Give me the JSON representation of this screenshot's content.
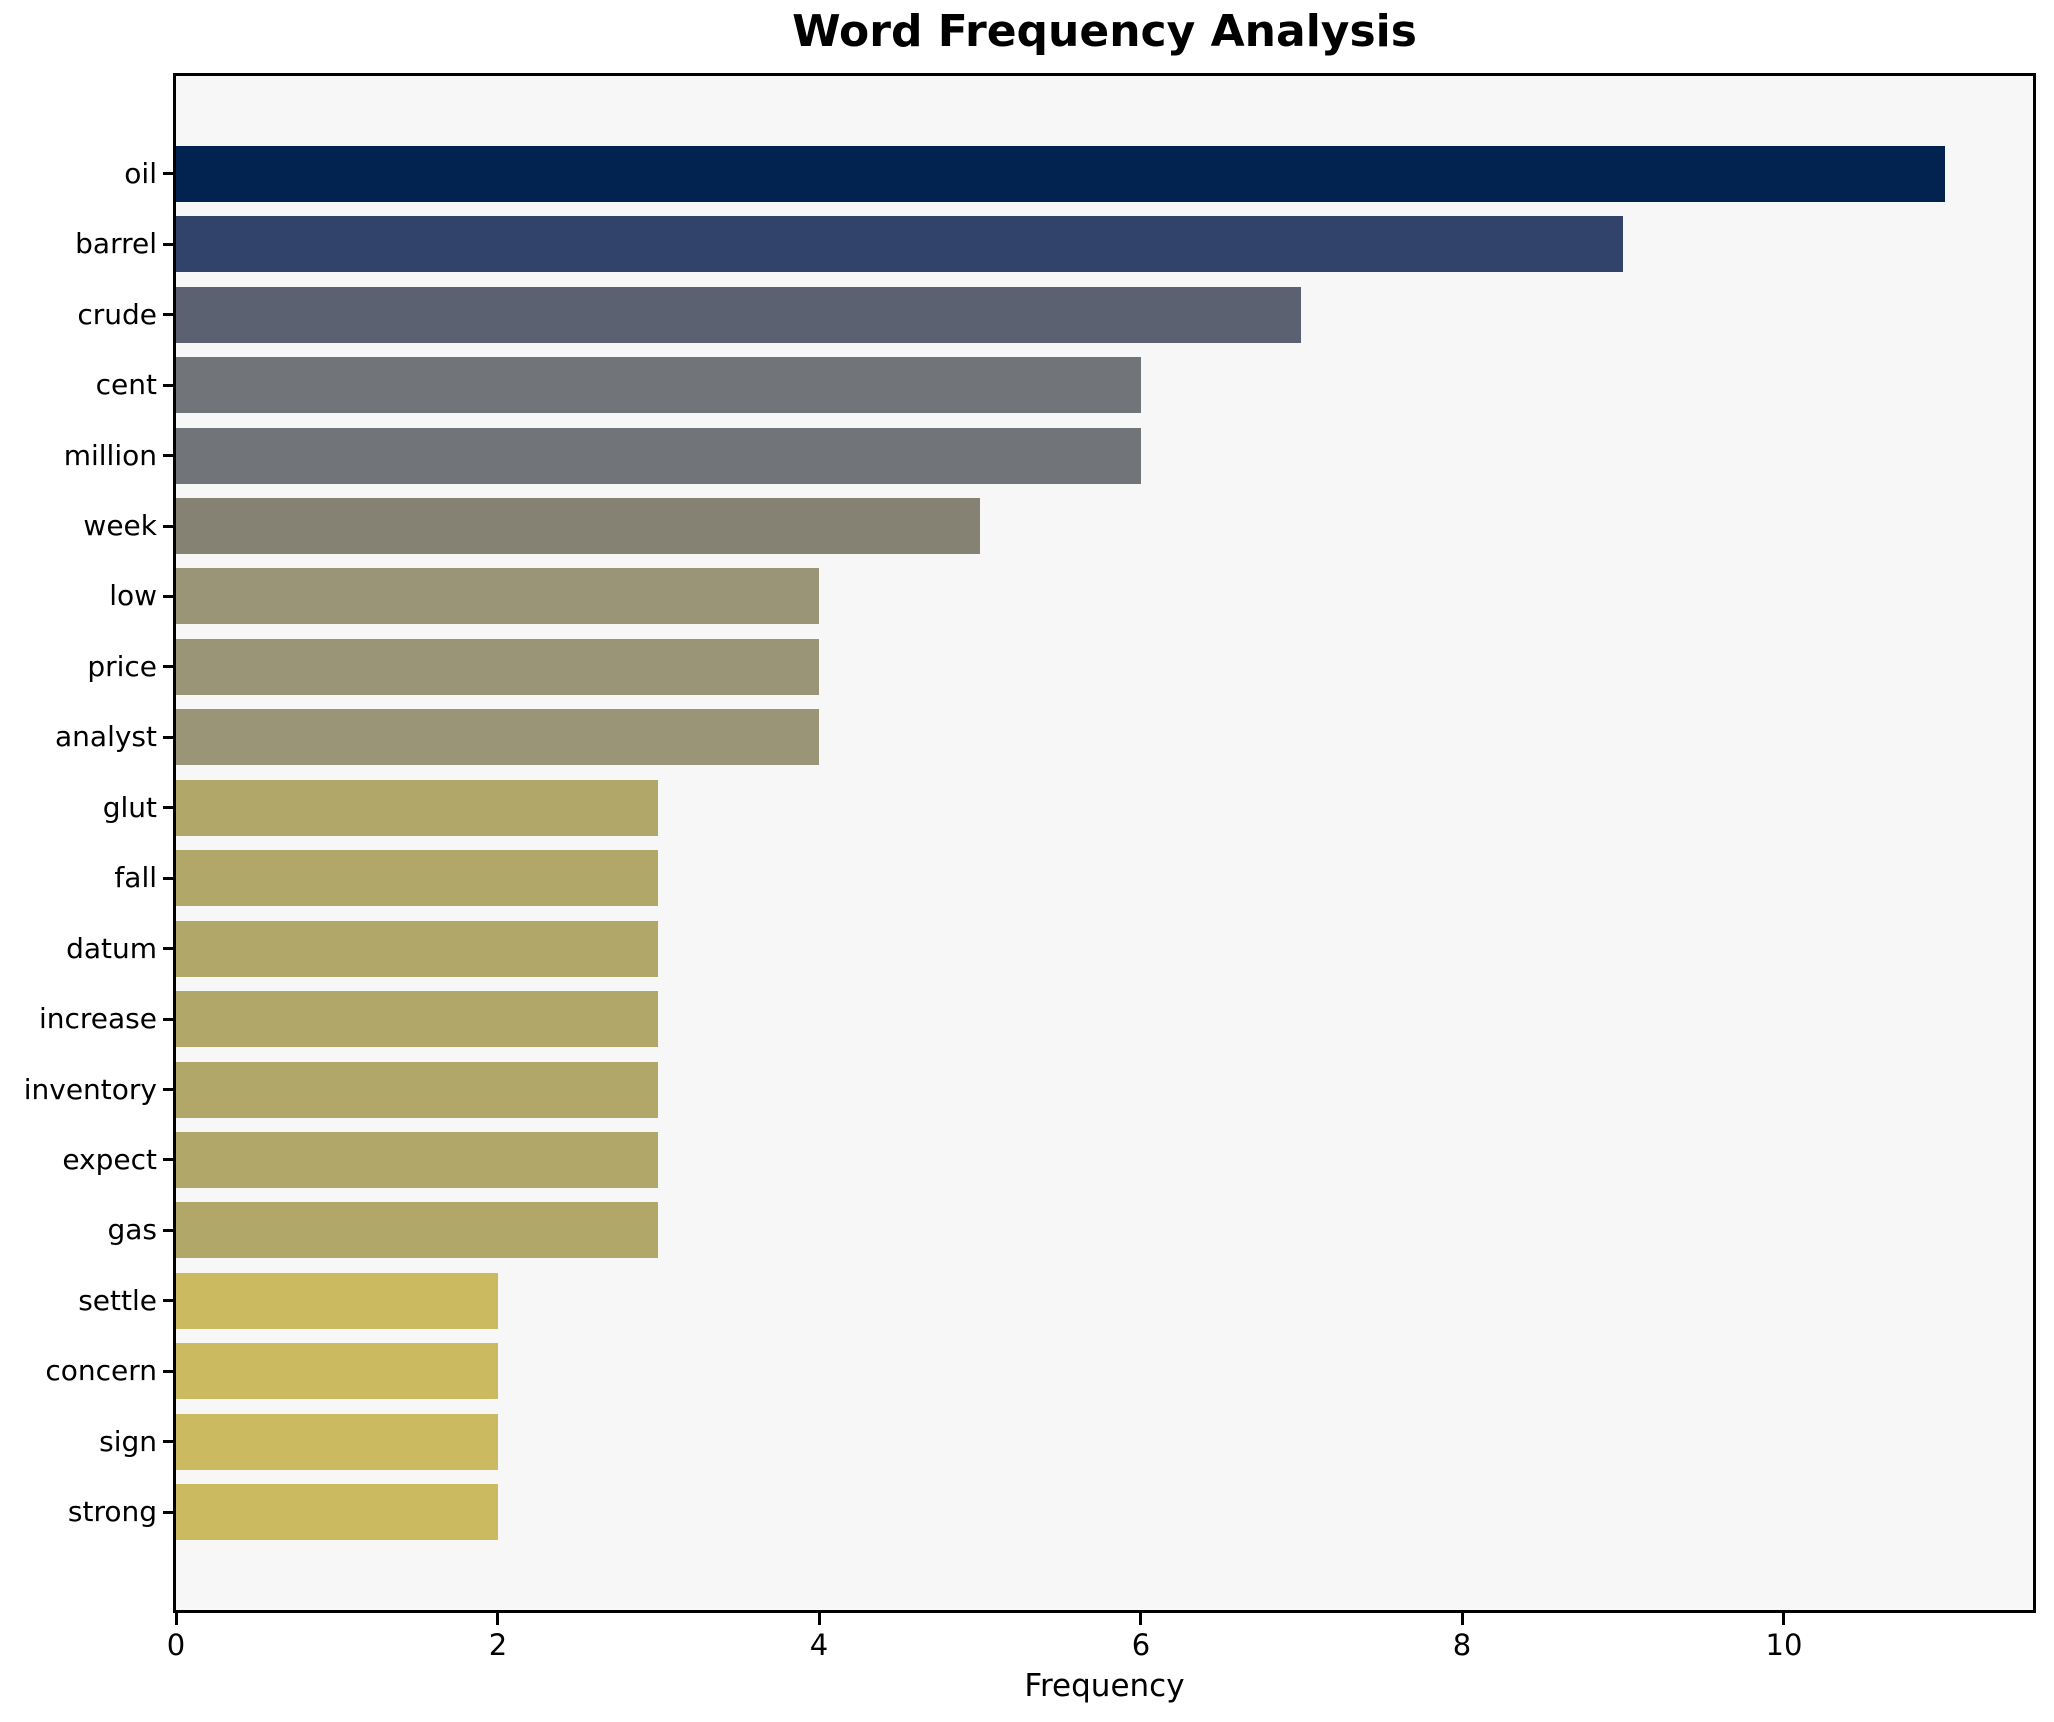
{
  "chart_data": {
    "type": "bar",
    "orientation": "horizontal",
    "title": "Word Frequency Analysis",
    "xlabel": "Frequency",
    "ylabel": "",
    "categories": [
      "oil",
      "barrel",
      "crude",
      "cent",
      "million",
      "week",
      "low",
      "price",
      "analyst",
      "glut",
      "fall",
      "datum",
      "increase",
      "inventory",
      "expect",
      "gas",
      "settle",
      "concern",
      "sign",
      "strong"
    ],
    "values": [
      11,
      9,
      7,
      6,
      6,
      5,
      4,
      4,
      4,
      3,
      3,
      3,
      3,
      3,
      3,
      3,
      2,
      2,
      2,
      2
    ],
    "bar_colors": [
      "#022350",
      "#32436B",
      "#5B6170",
      "#717478",
      "#717478",
      "#858274",
      "#9A9577",
      "#9A9577",
      "#9A9577",
      "#B1A768",
      "#B1A768",
      "#B1A768",
      "#B1A768",
      "#B1A768",
      "#B1A768",
      "#B1A768",
      "#CCBA60",
      "#CCBA60",
      "#CCBA60",
      "#CCBA60"
    ],
    "xticks": [
      0,
      2,
      4,
      6,
      8,
      10
    ],
    "xlim": [
      0,
      11.55
    ],
    "grid": false,
    "legend": null,
    "plot_background": "#F7F7F7",
    "figure_background": "#FFFFFF",
    "spine_color": "#000000",
    "colormap": "cividis"
  }
}
